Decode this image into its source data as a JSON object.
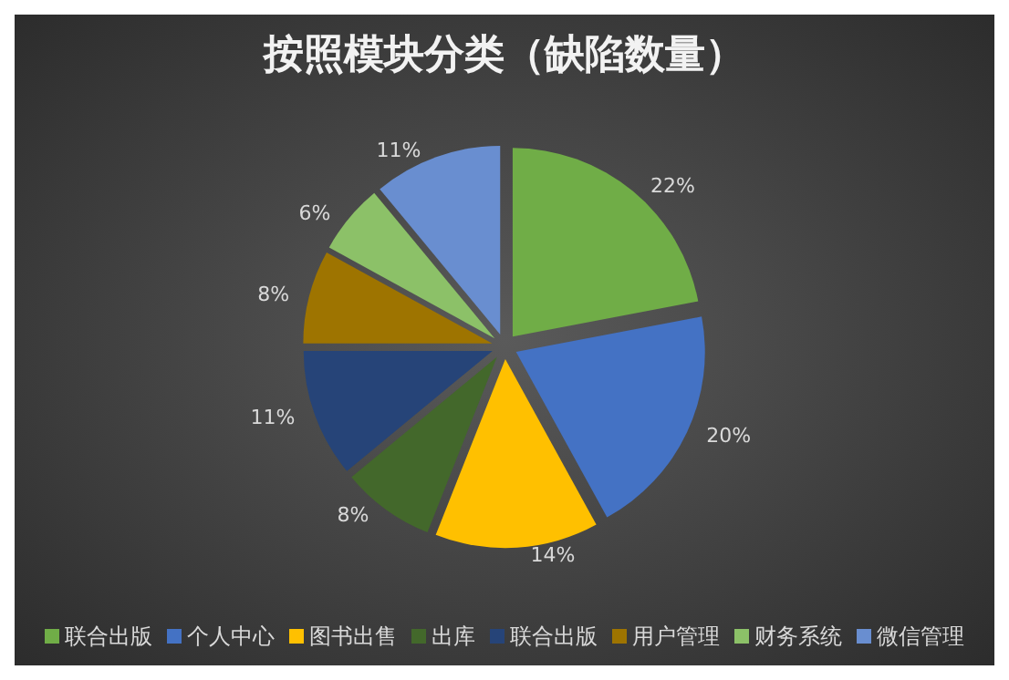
{
  "chart_data": {
    "type": "pie",
    "title": "按照模块分类（缺陷数量）",
    "categories": [
      "联合出版",
      "个人中心",
      "图书出售",
      "出库",
      "联合出版",
      "用户管理",
      "财务系统",
      "微信管理"
    ],
    "values": [
      22,
      20,
      14,
      8,
      11,
      8,
      6,
      11
    ],
    "value_labels": [
      "22%",
      "20%",
      "14%",
      "8%",
      "11%",
      "8%",
      "6%",
      "11%"
    ],
    "colors": [
      "#70ad47",
      "#4472c4",
      "#ffc000",
      "#43682b",
      "#264478",
      "#9e7400",
      "#8cc168",
      "#698ed0"
    ],
    "legend": "bottom"
  }
}
